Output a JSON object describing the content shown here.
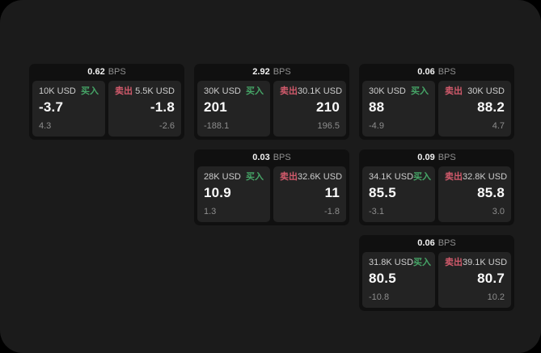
{
  "colors": {
    "outer_background": "#000000",
    "window_background": "#1b1b1b",
    "card_background": "#101010",
    "panel_background": "#232323",
    "buy_green": "#46a567",
    "sell_red": "#d15a6b",
    "price_text": "#fafafa",
    "label_text": "#cdcdcd",
    "sub_text": "#8d8d8d"
  },
  "cards": [
    {
      "bps_value": "0.62",
      "bps_unit": "BPS",
      "buy": {
        "amount": "10K USD",
        "side_label": "买入",
        "value": "-3.7",
        "sub_value": "4.3"
      },
      "sell": {
        "side_label": "卖出",
        "amount": "5.5K USD",
        "value": "-1.8",
        "sub_value": "-2.6"
      }
    },
    {
      "bps_value": "2.92",
      "bps_unit": "BPS",
      "buy": {
        "amount": "30K USD",
        "side_label": "买入",
        "value": "201",
        "sub_value": "-188.1"
      },
      "sell": {
        "side_label": "卖出",
        "amount": "30.1K USD",
        "value": "210",
        "sub_value": "196.5"
      }
    },
    {
      "bps_value": "0.06",
      "bps_unit": "BPS",
      "buy": {
        "amount": "30K USD",
        "side_label": "买入",
        "value": "88",
        "sub_value": "-4.9"
      },
      "sell": {
        "side_label": "卖出",
        "amount": "30K USD",
        "value": "88.2",
        "sub_value": "4.7"
      }
    },
    {
      "bps_value": "0.03",
      "bps_unit": "BPS",
      "buy": {
        "amount": "28K USD",
        "side_label": "买入",
        "value": "10.9",
        "sub_value": "1.3"
      },
      "sell": {
        "side_label": "卖出",
        "amount": "32.6K USD",
        "value": "11",
        "sub_value": "-1.8"
      }
    },
    {
      "bps_value": "0.09",
      "bps_unit": "BPS",
      "buy": {
        "amount": "34.1K USD",
        "side_label": "买入",
        "value": "85.5",
        "sub_value": "-3.1"
      },
      "sell": {
        "side_label": "卖出",
        "amount": "32.8K USD",
        "value": "85.8",
        "sub_value": "3.0"
      }
    },
    {
      "bps_value": "0.06",
      "bps_unit": "BPS",
      "buy": {
        "amount": "31.8K USD",
        "side_label": "买入",
        "value": "80.5",
        "sub_value": "-10.8"
      },
      "sell": {
        "side_label": "卖出",
        "amount": "39.1K USD",
        "value": "80.7",
        "sub_value": "10.2"
      }
    }
  ]
}
